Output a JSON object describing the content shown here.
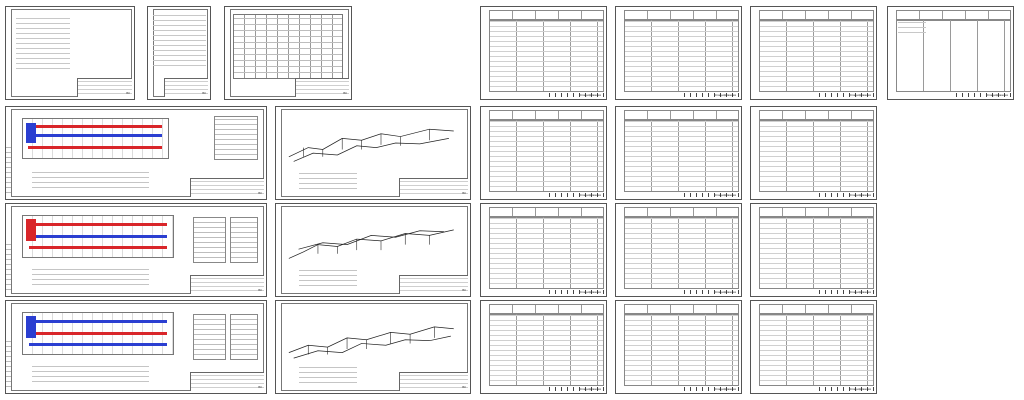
{
  "sheets": {
    "title_page": {
      "stamp_code": "ВК"
    },
    "notes_page": {
      "stamp_code": "ВК"
    },
    "general_data": {
      "stamp_code": "ВК"
    },
    "plan_1": {
      "stamp_code": "ВК"
    },
    "plan_2": {
      "stamp_code": "ВК"
    },
    "plan_3": {
      "stamp_code": "ВК"
    },
    "scheme_1": {
      "stamp_code": "ВК"
    },
    "scheme_2": {
      "stamp_code": "ВК"
    },
    "scheme_3": {
      "stamp_code": "ВК"
    },
    "spec_label": "Спецификация"
  },
  "colors": {
    "supply_pipe": "#d9262a",
    "return_pipe": "#2b3fd1"
  }
}
